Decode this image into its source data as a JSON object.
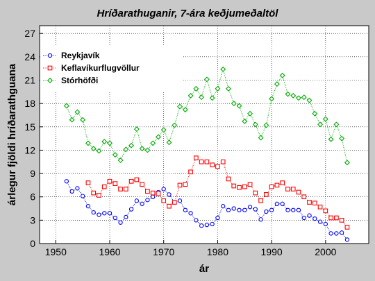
{
  "chart_data": {
    "type": "line",
    "title": "Hríðarathuganir, 7-ára keðjumeðaltöl",
    "xlabel": "ár",
    "ylabel": "árlegur fjöldi hríðarathguana",
    "xlim": [
      1947,
      2008
    ],
    "ylim": [
      0,
      28
    ],
    "xticks": [
      1950,
      1960,
      1970,
      1980,
      1990,
      2000
    ],
    "yticks": [
      0,
      3,
      6,
      9,
      12,
      15,
      18,
      21,
      24,
      27
    ],
    "grid": true,
    "legend_position": "top-left",
    "series": [
      {
        "name": "Reykjavík",
        "color": "#0000ff",
        "marker": "circle",
        "x": [
          1952,
          1953,
          1954,
          1955,
          1956,
          1957,
          1958,
          1959,
          1960,
          1961,
          1962,
          1963,
          1964,
          1965,
          1966,
          1967,
          1968,
          1969,
          1970,
          1971,
          1972,
          1973,
          1974,
          1975,
          1976,
          1977,
          1978,
          1979,
          1980,
          1981,
          1982,
          1983,
          1984,
          1985,
          1986,
          1987,
          1988,
          1989,
          1990,
          1991,
          1992,
          1993,
          1994,
          1995,
          1996,
          1997,
          1998,
          1999,
          2000,
          2001,
          2002,
          2003,
          2004
        ],
        "y": [
          8.0,
          6.7,
          7.1,
          6.1,
          4.8,
          4.0,
          3.7,
          3.9,
          3.9,
          3.3,
          2.7,
          3.4,
          4.4,
          5.5,
          5.1,
          5.6,
          6.0,
          6.6,
          7.0,
          6.3,
          5.3,
          5.5,
          4.3,
          3.9,
          3.0,
          2.3,
          2.4,
          2.5,
          3.3,
          4.8,
          4.3,
          4.5,
          4.3,
          4.3,
          4.7,
          4.4,
          3.1,
          4.1,
          4.3,
          5.1,
          5.1,
          4.3,
          4.3,
          4.3,
          3.3,
          3.6,
          3.2,
          2.8,
          2.5,
          1.3,
          1.3,
          1.4,
          0.5
        ]
      },
      {
        "name": "Keflavíkurflugvöllur",
        "color": "#ff0000",
        "marker": "square",
        "x": [
          1956,
          1957,
          1958,
          1959,
          1960,
          1961,
          1962,
          1963,
          1964,
          1965,
          1966,
          1967,
          1968,
          1969,
          1970,
          1971,
          1972,
          1973,
          1974,
          1975,
          1976,
          1977,
          1978,
          1979,
          1980,
          1981,
          1982,
          1983,
          1984,
          1985,
          1986,
          1987,
          1988,
          1989,
          1990,
          1991,
          1992,
          1993,
          1994,
          1995,
          1996,
          1997,
          1998,
          1999,
          2000,
          2001,
          2002,
          2003,
          2004
        ],
        "y": [
          7.8,
          6.5,
          6.2,
          7.3,
          8.0,
          7.7,
          7.0,
          7.0,
          8.0,
          8.2,
          7.6,
          6.7,
          6.5,
          6.4,
          5.5,
          4.8,
          5.3,
          7.5,
          7.6,
          9.2,
          11.0,
          10.5,
          10.5,
          10.1,
          9.9,
          10.5,
          8.3,
          7.4,
          7.2,
          7.3,
          7.6,
          6.5,
          5.5,
          6.3,
          7.3,
          7.5,
          7.8,
          7.0,
          7.0,
          6.6,
          6.0,
          5.3,
          5.2,
          4.7,
          4.2,
          3.3,
          3.3,
          3.0,
          2.1
        ]
      },
      {
        "name": "Stórhöfði",
        "color": "#00aa00",
        "marker": "diamond",
        "x": [
          1952,
          1953,
          1954,
          1955,
          1956,
          1957,
          1958,
          1959,
          1960,
          1961,
          1962,
          1963,
          1964,
          1965,
          1966,
          1967,
          1968,
          1969,
          1970,
          1971,
          1972,
          1973,
          1974,
          1975,
          1976,
          1977,
          1978,
          1979,
          1980,
          1981,
          1982,
          1983,
          1984,
          1985,
          1986,
          1987,
          1988,
          1989,
          1990,
          1991,
          1992,
          1993,
          1994,
          1995,
          1996,
          1997,
          1998,
          1999,
          2000,
          2001,
          2002,
          2003,
          2004
        ],
        "y": [
          17.7,
          15.9,
          16.9,
          15.9,
          12.9,
          12.2,
          11.9,
          13.1,
          12.9,
          11.4,
          10.7,
          12.1,
          12.6,
          14.7,
          12.2,
          12.0,
          12.9,
          13.7,
          14.6,
          13.0,
          15.2,
          17.6,
          17.2,
          19.0,
          19.9,
          18.8,
          21.1,
          18.7,
          19.9,
          22.4,
          19.9,
          18.0,
          17.7,
          15.7,
          16.7,
          15.3,
          13.6,
          15.2,
          18.6,
          20.5,
          21.6,
          19.2,
          19.0,
          18.7,
          18.8,
          18.4,
          16.7,
          15.3,
          16.0,
          13.4,
          15.3,
          13.5,
          10.4
        ]
      }
    ]
  }
}
